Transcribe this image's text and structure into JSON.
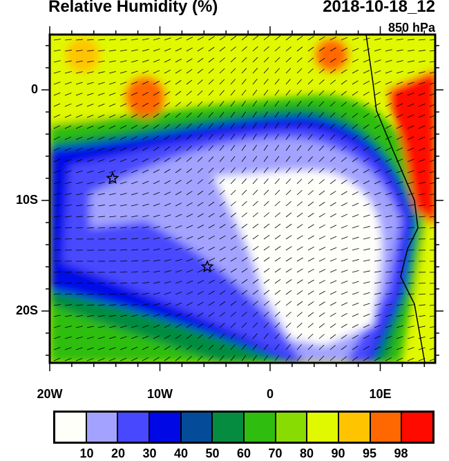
{
  "header": {
    "title": "Relative Humidity (%)",
    "date": "2018-10-18_12",
    "level": "850 hPa"
  },
  "map": {
    "lon_range": [
      -20,
      15
    ],
    "lat_range": [
      -25,
      5
    ],
    "lon_labels": [
      "20W",
      "10W",
      "0",
      "10E"
    ],
    "lat_labels": [
      "0",
      "10S",
      "20S"
    ],
    "markers": [
      {
        "name": "star",
        "lon": -14.3,
        "lat": -8
      },
      {
        "name": "star",
        "lon": -5.7,
        "lat": -16
      }
    ]
  },
  "colorbar": {
    "labels": [
      "10",
      "20",
      "30",
      "40",
      "50",
      "60",
      "70",
      "80",
      "90",
      "95",
      "98"
    ],
    "colors": [
      "#fffffa",
      "#a3a3ff",
      "#4848ff",
      "#0008e6",
      "#044c99",
      "#068c40",
      "#2fbe10",
      "#88dc02",
      "#e0f800",
      "#ffc400",
      "#ff6800",
      "#ff0a00"
    ]
  }
}
